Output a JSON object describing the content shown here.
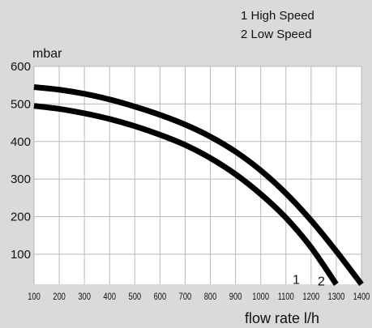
{
  "colors": {
    "background": "#d9dadb",
    "plot_area": "#ffffff",
    "grid": "#b8b9ba",
    "curve": "#000000",
    "text": "#111111"
  },
  "chart_data": {
    "type": "line",
    "title": "",
    "legend": [
      "1 High Speed",
      "2 Low Speed"
    ],
    "legend_placement": "top-right",
    "xlabel": "flow rate l/h",
    "ylabel": "mbar",
    "xlim": [
      100,
      1400
    ],
    "ylim": [
      20,
      600
    ],
    "grid": true,
    "xticks": [
      100,
      200,
      300,
      400,
      500,
      600,
      700,
      800,
      900,
      1000,
      1100,
      1200,
      1300,
      1400
    ],
    "yticks": [
      100,
      200,
      300,
      400,
      500,
      600
    ],
    "series": [
      {
        "name": "1",
        "x": [
          100,
          200,
          300,
          400,
          500,
          600,
          700,
          800,
          900,
          1000,
          1100,
          1200,
          1300
        ],
        "y": [
          495,
          487,
          475,
          460,
          441,
          418,
          391,
          356,
          313,
          260,
          197,
          118,
          20
        ]
      },
      {
        "name": "2",
        "x": [
          100,
          200,
          300,
          400,
          500,
          600,
          700,
          800,
          900,
          1000,
          1100,
          1200,
          1300,
          1400
        ],
        "y": [
          545,
          538,
          527,
          512,
          493,
          471,
          445,
          413,
          373,
          323,
          262,
          190,
          108,
          20
        ]
      }
    ]
  }
}
